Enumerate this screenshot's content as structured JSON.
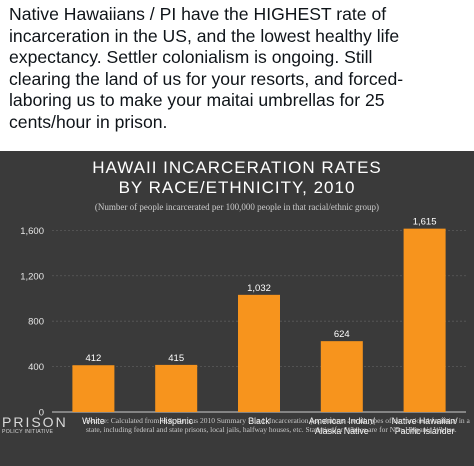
{
  "tweet": {
    "lines": [
      "Native Hawaiians / PI have the HIGHEST rate of",
      "incarceration in the US, and the lowest healthy life",
      "expectancy. Settler colonialism is ongoing. Still",
      "clearing the land of us for your resorts, and forced-",
      "laboring us to make your maitai umbrellas for 25",
      "cents/hour in prison."
    ]
  },
  "chart_data": {
    "type": "bar",
    "title_lines": [
      "HAWAII INCARCERATION RATES",
      "BY RACE/ETHNICITY, 2010"
    ],
    "subtitle": "(Number of people incarcerated per 100,000 people in that racial/ethnic group)",
    "categories": [
      [
        "White"
      ],
      [
        "Hispanic"
      ],
      [
        "Black"
      ],
      [
        "American Indian/",
        "Alaska Native"
      ],
      [
        "Native Hawaiian/",
        "Pacific Islander"
      ]
    ],
    "values": [
      412,
      415,
      1032,
      624,
      1615
    ],
    "value_labels": [
      "412",
      "415",
      "1,032",
      "624",
      "1,615"
    ],
    "yticks": [
      0,
      400,
      800,
      1200,
      1600
    ],
    "ytick_labels": [
      "0",
      "400",
      "800",
      "1,200",
      "1,600"
    ],
    "ylim": [
      0,
      1700
    ],
    "bar_color": "#f7941d",
    "background_color": "#3a3a3a"
  },
  "footer": {
    "logo_top": "PRISON",
    "logo_bottom": "POLICY INITIATIVE",
    "source": "Source: Calculated from U.S. Census 2010 Summary File 1. Incarceration populations are all types of correctional facilities in a state, including federal and state prisons, local jails, halfway houses, etc. Statistics for Whites are for Non-Hispanic Whites."
  }
}
